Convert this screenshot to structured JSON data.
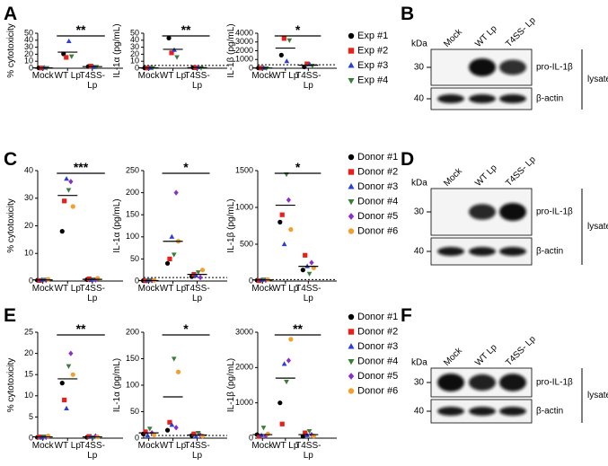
{
  "panels": [
    "A",
    "B",
    "C",
    "D",
    "E",
    "F"
  ],
  "chart_data": [
    {
      "type": "dot",
      "ylabel": "% cytotoxicity",
      "categories": [
        "Mock",
        "WT Lp",
        "T4SS- Lp"
      ],
      "ylim": [
        0,
        50
      ],
      "yticks": [
        0,
        10,
        20,
        30,
        40,
        50
      ],
      "series": [
        {
          "color": "#000000",
          "marker": "circle",
          "values": [
            0.5,
            20.5,
            2.5
          ]
        },
        {
          "color": "#e8201a",
          "marker": "square",
          "values": [
            0.3,
            15.5,
            3
          ]
        },
        {
          "color": "#2b3fd4",
          "marker": "triangle-up",
          "values": [
            0.8,
            38.5,
            1.5
          ]
        },
        {
          "color": "#3a7d3a",
          "marker": "triangle-down",
          "values": [
            0.4,
            17,
            2
          ]
        }
      ],
      "means": [
        0.5,
        23,
        2.3
      ],
      "significance": "**"
    },
    {
      "type": "dot",
      "ylabel": "IL-1α (pg/mL)",
      "categories": [
        "Mock",
        "WT Lp",
        "T4SS- Lp"
      ],
      "ylim": [
        0,
        50
      ],
      "yticks": [
        0,
        10,
        20,
        30,
        40,
        50
      ],
      "series": [
        {
          "color": "#000000",
          "marker": "circle",
          "values": [
            0.5,
            43,
            1
          ]
        },
        {
          "color": "#e8201a",
          "marker": "square",
          "values": [
            0.3,
            22,
            0.8
          ]
        },
        {
          "color": "#2b3fd4",
          "marker": "triangle-up",
          "values": [
            0.4,
            26,
            1.2
          ]
        },
        {
          "color": "#3a7d3a",
          "marker": "triangle-down",
          "values": [
            0.6,
            16,
            0.5
          ]
        }
      ],
      "means": [
        0.5,
        27,
        0.9
      ],
      "significance": "**",
      "threshold": 4
    },
    {
      "type": "dot",
      "ylabel": "IL-1β (pg/mL)",
      "categories": [
        "Mock",
        "WT Lp",
        "T4SS- Lp"
      ],
      "ylim": [
        0,
        4000
      ],
      "yticks": [
        0,
        1000,
        2000,
        3000,
        4000
      ],
      "series": [
        {
          "name": "Exp #1",
          "color": "#000000",
          "marker": "circle",
          "values": [
            30,
            1500,
            150
          ]
        },
        {
          "name": "Exp #2",
          "color": "#e8201a",
          "marker": "square",
          "values": [
            20,
            3400,
            500
          ]
        },
        {
          "name": "Exp #3",
          "color": "#2b3fd4",
          "marker": "triangle-up",
          "values": [
            40,
            800,
            450
          ]
        },
        {
          "name": "Exp #4",
          "color": "#3a7d3a",
          "marker": "triangle-down",
          "values": [
            10,
            3200,
            300
          ]
        }
      ],
      "means": [
        25,
        2300,
        350
      ],
      "significance": "*",
      "threshold": 400,
      "legend": "right"
    },
    {
      "type": "dot",
      "ylabel": "% cytotoxicity",
      "categories": [
        "Mock",
        "WT Lp",
        "T4SS- Lp"
      ],
      "ylim": [
        0,
        40
      ],
      "yticks": [
        0,
        10,
        20,
        30,
        40
      ],
      "series": [
        {
          "color": "#000000",
          "marker": "circle",
          "values": [
            0.3,
            18,
            0.5
          ]
        },
        {
          "color": "#e8201a",
          "marker": "square",
          "values": [
            0.2,
            29,
            0.8
          ]
        },
        {
          "color": "#2b3fd4",
          "marker": "triangle-up",
          "values": [
            0.4,
            37,
            0.3
          ]
        },
        {
          "color": "#3a7d3a",
          "marker": "triangle-down",
          "values": [
            0.5,
            33,
            0.6
          ]
        },
        {
          "color": "#8b2fc9",
          "marker": "diamond",
          "values": [
            0.3,
            36,
            0.4
          ]
        },
        {
          "color": "#f0a030",
          "marker": "circle",
          "values": [
            0.6,
            27,
            1
          ]
        }
      ],
      "means": [
        0.4,
        31,
        0.6
      ],
      "significance": "***"
    },
    {
      "type": "dot",
      "ylabel": "IL-1α (pg/mL)",
      "categories": [
        "Mock",
        "WT Lp",
        "T4SS- Lp"
      ],
      "ylim": [
        0,
        250
      ],
      "yticks": [
        0,
        50,
        100,
        150,
        200,
        250
      ],
      "series": [
        {
          "color": "#000000",
          "marker": "circle",
          "values": [
            1,
            40,
            10
          ]
        },
        {
          "color": "#e8201a",
          "marker": "square",
          "values": [
            0.5,
            50,
            15
          ]
        },
        {
          "color": "#2b3fd4",
          "marker": "triangle-up",
          "values": [
            1,
            100,
            12
          ]
        },
        {
          "color": "#3a7d3a",
          "marker": "triangle-down",
          "values": [
            2,
            60,
            20
          ]
        },
        {
          "color": "#8b2fc9",
          "marker": "diamond",
          "values": [
            1,
            200,
            8
          ]
        },
        {
          "color": "#f0a030",
          "marker": "circle",
          "values": [
            1.5,
            90,
            25
          ]
        }
      ],
      "means": [
        1,
        90,
        15
      ],
      "significance": "*",
      "threshold": 8
    },
    {
      "type": "dot",
      "ylabel": "IL-1β (pg/mL)",
      "categories": [
        "Mock",
        "WT Lp",
        "T4SS- Lp"
      ],
      "ylim": [
        0,
        1500
      ],
      "yticks": [
        0,
        500,
        1000,
        1500
      ],
      "series": [
        {
          "name": "Donor #1",
          "color": "#000000",
          "marker": "circle",
          "values": [
            10,
            800,
            150
          ]
        },
        {
          "name": "Donor #2",
          "color": "#e8201a",
          "marker": "square",
          "values": [
            5,
            900,
            350
          ]
        },
        {
          "name": "Donor #3",
          "color": "#2b3fd4",
          "marker": "triangle-up",
          "values": [
            15,
            500,
            200
          ]
        },
        {
          "name": "Donor #4",
          "color": "#3a7d3a",
          "marker": "triangle-down",
          "values": [
            20,
            1450,
            100
          ]
        },
        {
          "name": "Donor #5",
          "color": "#8b2fc9",
          "marker": "diamond",
          "values": [
            10,
            1100,
            250
          ]
        },
        {
          "name": "Donor #6",
          "color": "#f0a030",
          "marker": "circle",
          "values": [
            20,
            700,
            180
          ]
        }
      ],
      "means": [
        15,
        1030,
        200
      ],
      "significance": "*",
      "threshold": 20,
      "legend": "right"
    },
    {
      "type": "dot",
      "ylabel": "% cytotoxicity",
      "categories": [
        "Mock",
        "WT Lp",
        "T4SS- Lp"
      ],
      "ylim": [
        0,
        25
      ],
      "yticks": [
        0,
        5,
        10,
        15,
        20,
        25
      ],
      "series": [
        {
          "color": "#000000",
          "marker": "circle",
          "values": [
            0.2,
            13,
            0.2
          ]
        },
        {
          "color": "#e8201a",
          "marker": "square",
          "values": [
            0.3,
            9,
            0.4
          ]
        },
        {
          "color": "#2b3fd4",
          "marker": "triangle-up",
          "values": [
            0.1,
            7,
            0.3
          ]
        },
        {
          "color": "#3a7d3a",
          "marker": "triangle-down",
          "values": [
            0.4,
            17,
            0.2
          ]
        },
        {
          "color": "#8b2fc9",
          "marker": "diamond",
          "values": [
            0.2,
            20,
            0.5
          ]
        },
        {
          "color": "#f0a030",
          "marker": "circle",
          "values": [
            0.5,
            15,
            0.3
          ]
        }
      ],
      "means": [
        0.3,
        14,
        0.3
      ],
      "significance": "**"
    },
    {
      "type": "dot",
      "ylabel": "IL-1α (pg/mL)",
      "categories": [
        "Mock",
        "WT Lp",
        "T4SS- Lp"
      ],
      "ylim": [
        0,
        200
      ],
      "yticks": [
        0,
        50,
        100,
        150,
        200
      ],
      "series": [
        {
          "color": "#000000",
          "marker": "circle",
          "values": [
            8,
            15,
            5
          ]
        },
        {
          "color": "#e8201a",
          "marker": "square",
          "values": [
            12,
            30,
            8
          ]
        },
        {
          "color": "#2b3fd4",
          "marker": "triangle-up",
          "values": [
            5,
            25,
            3
          ]
        },
        {
          "color": "#3a7d3a",
          "marker": "triangle-down",
          "values": [
            18,
            150,
            10
          ]
        },
        {
          "color": "#8b2fc9",
          "marker": "diamond",
          "values": [
            10,
            20,
            6
          ]
        },
        {
          "color": "#f0a030",
          "marker": "circle",
          "values": [
            6,
            125,
            4
          ]
        }
      ],
      "means": [
        10,
        78,
        6
      ],
      "significance": "*",
      "threshold": 5
    },
    {
      "type": "dot",
      "ylabel": "IL-1β (pg/mL)",
      "categories": [
        "Mock",
        "WT Lp",
        "T4SS- Lp"
      ],
      "ylim": [
        0,
        3000
      ],
      "yticks": [
        0,
        1000,
        2000,
        3000
      ],
      "series": [
        {
          "name": "Donor #1",
          "color": "#000000",
          "marker": "circle",
          "values": [
            100,
            1000,
            50
          ]
        },
        {
          "name": "Donor #2",
          "color": "#e8201a",
          "marker": "square",
          "values": [
            50,
            400,
            150
          ]
        },
        {
          "name": "Donor #3",
          "color": "#2b3fd4",
          "marker": "triangle-up",
          "values": [
            80,
            2100,
            80
          ]
        },
        {
          "name": "Donor #4",
          "color": "#3a7d3a",
          "marker": "triangle-down",
          "values": [
            300,
            1600,
            200
          ]
        },
        {
          "name": "Donor #5",
          "color": "#8b2fc9",
          "marker": "diamond",
          "values": [
            60,
            2200,
            100
          ]
        },
        {
          "name": "Donor #6",
          "color": "#f0a030",
          "marker": "circle",
          "values": [
            120,
            2800,
            60
          ]
        }
      ],
      "means": [
        100,
        1700,
        100
      ],
      "significance": "**",
      "legend": "right"
    }
  ],
  "blots": [
    {
      "kda": "kDa",
      "markers": [
        "30",
        "40"
      ],
      "lanes": [
        "Mock",
        "WT Lp",
        "T4SS- Lp"
      ],
      "bands": [
        "pro-IL-1β",
        "β-actin"
      ],
      "fraction": "lysate"
    },
    {
      "kda": "kDa",
      "markers": [
        "30",
        "40"
      ],
      "lanes": [
        "Mock",
        "WT Lp",
        "T4SS- Lp"
      ],
      "bands": [
        "pro-IL-1β",
        "β-actin"
      ],
      "fraction": "lysate"
    },
    {
      "kda": "kDa",
      "markers": [
        "30",
        "40"
      ],
      "lanes": [
        "Mock",
        "WT Lp",
        "T4SS- Lp"
      ],
      "bands": [
        "pro-IL-1β",
        "β-actin"
      ],
      "fraction": "lysate"
    }
  ]
}
